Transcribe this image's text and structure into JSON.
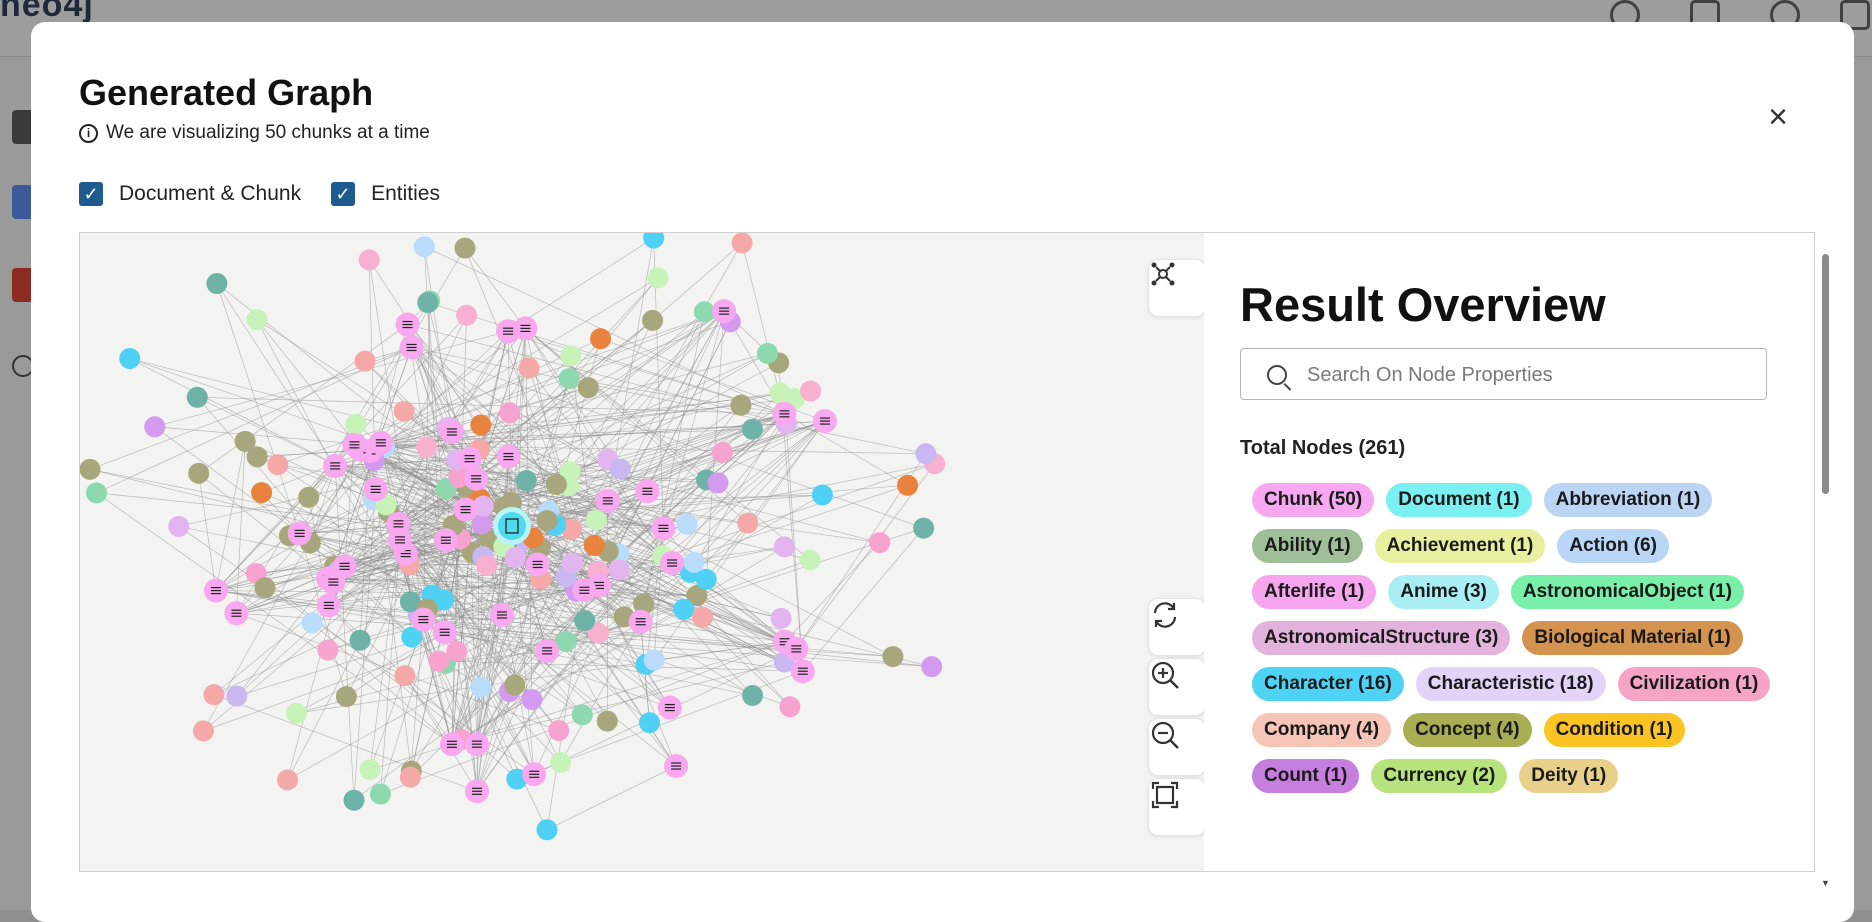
{
  "app": {
    "logo_text": "neo4j"
  },
  "modal": {
    "title": "Generated Graph",
    "info_text": "We are visualizing 50 chunks at a time",
    "close_label": "×",
    "checkboxes": [
      {
        "label": "Document & Chunk",
        "checked": true
      },
      {
        "label": "Entities",
        "checked": true
      }
    ]
  },
  "graph": {
    "controls": {
      "layout_icon": "graph-layout-icon",
      "refresh_icon": "refresh-icon",
      "zoom_in_icon": "zoom-in-icon",
      "zoom_out_icon": "zoom-out-icon",
      "fit_icon": "fit-to-screen-icon"
    },
    "node_colors": {
      "chunk": "#f7a8ee",
      "document": "#4fdbee",
      "entity_palette": [
        "#a8a67c",
        "#a8a67c",
        "#c9b7f2",
        "#4fd0f5",
        "#b8dcfa",
        "#f7b0cf",
        "#c7f3b9",
        "#d39af0",
        "#e8823c",
        "#8ed8b0",
        "#f5a8a8",
        "#e2b5f0",
        "#f7a3d0",
        "#6fb3a8"
      ]
    }
  },
  "overview": {
    "title": "Result Overview",
    "search_placeholder": "Search On Node Properties",
    "total_nodes": "Total Nodes (261)",
    "chips": [
      {
        "label": "Chunk (50)",
        "color": "#f7a8f0"
      },
      {
        "label": "Document (1)",
        "color": "#7af0f2"
      },
      {
        "label": "Abbreviation (1)",
        "color": "#bcd5f5"
      },
      {
        "label": "Ability (1)",
        "color": "#9fbf99"
      },
      {
        "label": "Achievement (1)",
        "color": "#e8f0a0"
      },
      {
        "label": "Action (6)",
        "color": "#bad6f7"
      },
      {
        "label": "Afterlife (1)",
        "color": "#f6a6ee"
      },
      {
        "label": "Anime (3)",
        "color": "#a8eef2"
      },
      {
        "label": "AstronomicalObject (1)",
        "color": "#79efa9"
      },
      {
        "label": "AstronomicalStructure (3)",
        "color": "#e3b3de"
      },
      {
        "label": "Biological Material (1)",
        "color": "#d4944f"
      },
      {
        "label": "Character (16)",
        "color": "#4fd3f5"
      },
      {
        "label": "Characteristic (18)",
        "color": "#e2d3f7"
      },
      {
        "label": "Civilization (1)",
        "color": "#f5a4c7"
      },
      {
        "label": "Company (4)",
        "color": "#f7c4b8"
      },
      {
        "label": "Concept (4)",
        "color": "#aaae52"
      },
      {
        "label": "Condition (1)",
        "color": "#fcc423"
      },
      {
        "label": "Count (1)",
        "color": "#c67fde"
      },
      {
        "label": "Currency (2)",
        "color": "#b7e37d"
      },
      {
        "label": "Deity (1)",
        "color": "#e8cf8a"
      }
    ]
  }
}
